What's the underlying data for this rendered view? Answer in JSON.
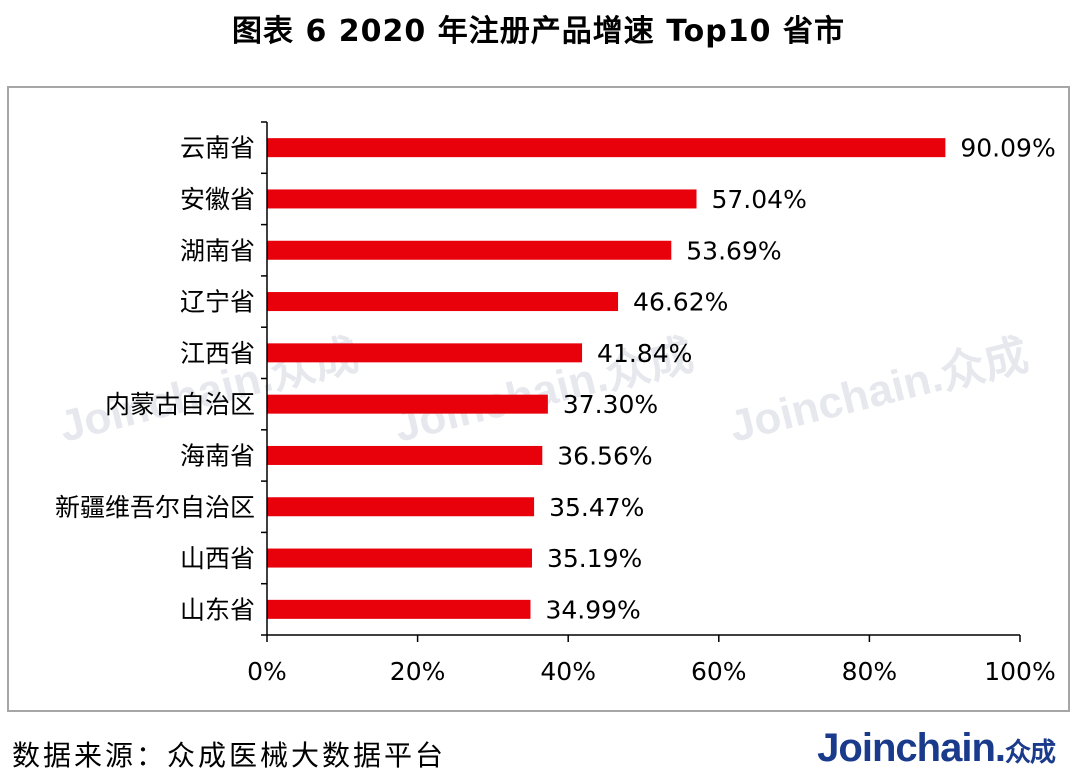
{
  "title": "图表 6   2020 年注册产品增速 Top10 省市",
  "source": "数据来源：众成医械大数据平台",
  "brand": {
    "main": "Joinchain.",
    "sub": "众成"
  },
  "watermark": "Joinchain.众成",
  "colors": {
    "bar": "#e8000b",
    "axis": "#000000",
    "frame": "#a6a6a6",
    "brand": "#1a3a8c"
  },
  "chart_data": {
    "type": "bar",
    "orientation": "horizontal",
    "categories": [
      "云南省",
      "安徽省",
      "湖南省",
      "辽宁省",
      "江西省",
      "内蒙古自治区",
      "海南省",
      "新疆维吾尔自治区",
      "山西省",
      "山东省"
    ],
    "values": [
      90.09,
      57.04,
      53.69,
      46.62,
      41.84,
      37.3,
      36.56,
      35.47,
      35.19,
      34.99
    ],
    "data_labels": [
      "90.09%",
      "57.04%",
      "53.69%",
      "46.62%",
      "41.84%",
      "37.30%",
      "36.56%",
      "35.47%",
      "35.19%",
      "34.99%"
    ],
    "x_ticks": [
      0,
      20,
      40,
      60,
      80,
      100
    ],
    "x_tick_labels": [
      "0%",
      "20%",
      "40%",
      "60%",
      "80%",
      "100%"
    ],
    "xlim": [
      0,
      100
    ],
    "grid": false,
    "legend": "none"
  }
}
